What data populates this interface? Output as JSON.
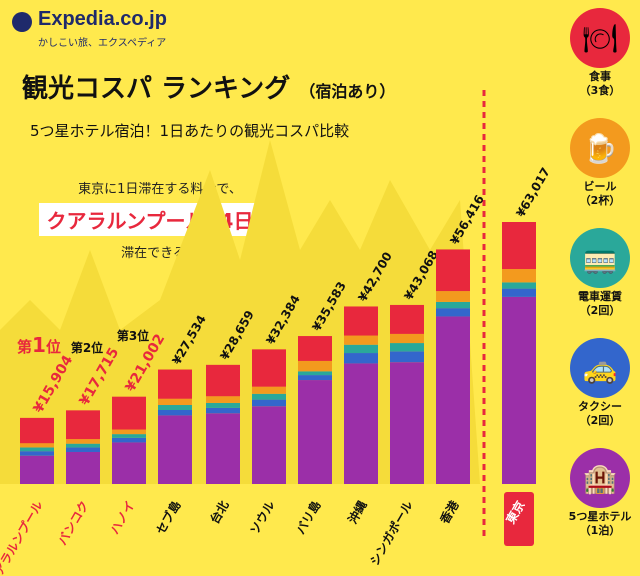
{
  "brand": {
    "name": "Expedia.co.jp",
    "tagline": "かしこい旅、エクスペディア"
  },
  "header": {
    "title": "観光コスパ ランキング",
    "title_note": "（宿泊あり）",
    "subtitle": "5つ星ホテル宿泊！1日あたりの観光コスパ比較"
  },
  "callout": {
    "line1": "東京に1日滞在する料金で、",
    "city": "クアラルンプール",
    "mid": "に",
    "days": "4日間",
    "line3": "滞在できる！"
  },
  "colors": {
    "background": "#ffe94d",
    "hotel": "#9b2fa8",
    "taxi": "#3366cc",
    "train": "#2aa89a",
    "beer": "#f39a1e",
    "meal": "#e8283d",
    "divider": "#e8283d"
  },
  "chart_data": {
    "type": "bar",
    "stacked": true,
    "categories": [
      "クアラルンプール",
      "バンコク",
      "ハノイ",
      "セブ島",
      "台北",
      "ソウル",
      "バリ島",
      "沖縄",
      "シンガポール",
      "香港",
      "東京"
    ],
    "totals": [
      "¥15,904",
      "¥17,715",
      "¥21,002",
      "¥27,534",
      "¥28,659",
      "¥32,384",
      "¥35,583",
      "¥42,700",
      "¥43,068",
      "¥56,416",
      "¥63,017"
    ],
    "total_values": [
      15904,
      17715,
      21002,
      27534,
      28659,
      32384,
      35583,
      42700,
      43068,
      56416,
      63017
    ],
    "ranks": [
      {
        "index": 0,
        "label": "第",
        "num": "1",
        "suffix": "位"
      },
      {
        "index": 1,
        "label": "第2位"
      },
      {
        "index": 2,
        "label": "第3位"
      }
    ],
    "series": [
      {
        "name": "5つ星ホテル（1泊）",
        "key": "hotel",
        "values": [
          6800,
          7700,
          10000,
          16500,
          17000,
          18700,
          25000,
          29000,
          29300,
          40300,
          45000
        ]
      },
      {
        "name": "タクシー（2回）",
        "key": "taxi",
        "values": [
          1100,
          1100,
          1100,
          1300,
          1300,
          1600,
          1200,
          2500,
          2600,
          2000,
          2000
        ]
      },
      {
        "name": "電車運賃（2回）",
        "key": "train",
        "values": [
          900,
          900,
          900,
          1200,
          1200,
          1400,
          900,
          2000,
          2000,
          1500,
          1500
        ]
      },
      {
        "name": "ビール（2杯）",
        "key": "beer",
        "values": [
          1000,
          1100,
          1100,
          1500,
          1600,
          1700,
          2500,
          2200,
          2200,
          2600,
          3200
        ]
      },
      {
        "name": "食事（3食）",
        "key": "meal",
        "values": [
          6104,
          6915,
          7902,
          7034,
          7559,
          8984,
          5983,
          7000,
          6968,
          10016,
          11317
        ]
      }
    ],
    "highlight": "東京",
    "ylim": [
      0,
      63017
    ]
  },
  "icons": [
    {
      "name": "meal-icon",
      "glyph": "🍽",
      "label": "食事\n（3食）",
      "bg": "#e8283d"
    },
    {
      "name": "beer-icon",
      "glyph": "🍺",
      "label": "ビール\n（2杯）",
      "bg": "#f39a1e"
    },
    {
      "name": "train-icon",
      "glyph": "🚃",
      "label": "電車運賃\n（2回）",
      "bg": "#2aa89a"
    },
    {
      "name": "taxi-icon",
      "glyph": "🚕",
      "label": "タクシー\n（2回）",
      "bg": "#3366cc"
    },
    {
      "name": "hotel-icon",
      "glyph": "🏨",
      "label": "5つ星ホテル\n（1泊）",
      "bg": "#9b2fa8"
    }
  ]
}
